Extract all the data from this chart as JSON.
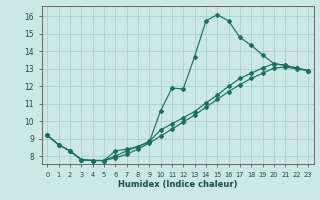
{
  "xlabel": "Humidex (Indice chaleur)",
  "bg_color": "#cce8e5",
  "grid_color": "#aacfcc",
  "line_color": "#1a7060",
  "xlim": [
    -0.5,
    23.5
  ],
  "ylim": [
    7.55,
    16.6
  ],
  "yticks": [
    8,
    9,
    10,
    11,
    12,
    13,
    14,
    15,
    16
  ],
  "xticks": [
    0,
    1,
    2,
    3,
    4,
    5,
    6,
    7,
    8,
    9,
    10,
    11,
    12,
    13,
    14,
    15,
    16,
    17,
    18,
    19,
    20,
    21,
    22,
    23
  ],
  "curve1_x": [
    0,
    1,
    2,
    3,
    4,
    5,
    6,
    7,
    8,
    9,
    10,
    11,
    12,
    13,
    14,
    15,
    16,
    17,
    18,
    19,
    20,
    21,
    22,
    23
  ],
  "curve1_y": [
    9.2,
    8.65,
    8.3,
    7.8,
    7.75,
    7.75,
    8.3,
    8.4,
    8.55,
    8.8,
    10.6,
    11.9,
    11.85,
    13.7,
    15.75,
    16.1,
    15.75,
    14.8,
    14.35,
    13.8,
    13.3,
    13.2,
    13.05,
    12.9
  ],
  "curve2_x": [
    0,
    1,
    2,
    3,
    4,
    5,
    6,
    7,
    8,
    9,
    10,
    11,
    12,
    13,
    14,
    15,
    16,
    17,
    18,
    19,
    20,
    21,
    22,
    23
  ],
  "curve2_y": [
    9.2,
    8.65,
    8.3,
    7.8,
    7.75,
    7.75,
    8.0,
    8.3,
    8.55,
    8.85,
    9.5,
    9.85,
    10.2,
    10.55,
    11.05,
    11.5,
    12.0,
    12.45,
    12.75,
    13.05,
    13.3,
    13.2,
    13.05,
    12.9
  ],
  "curve3_x": [
    0,
    1,
    2,
    3,
    4,
    5,
    6,
    7,
    8,
    9,
    10,
    11,
    12,
    13,
    14,
    15,
    16,
    17,
    18,
    19,
    20,
    21,
    22,
    23
  ],
  "curve3_y": [
    9.2,
    8.65,
    8.3,
    7.8,
    7.75,
    7.75,
    7.9,
    8.1,
    8.4,
    8.75,
    9.15,
    9.55,
    9.95,
    10.35,
    10.8,
    11.25,
    11.7,
    12.1,
    12.45,
    12.75,
    13.05,
    13.1,
    13.0,
    12.9
  ]
}
